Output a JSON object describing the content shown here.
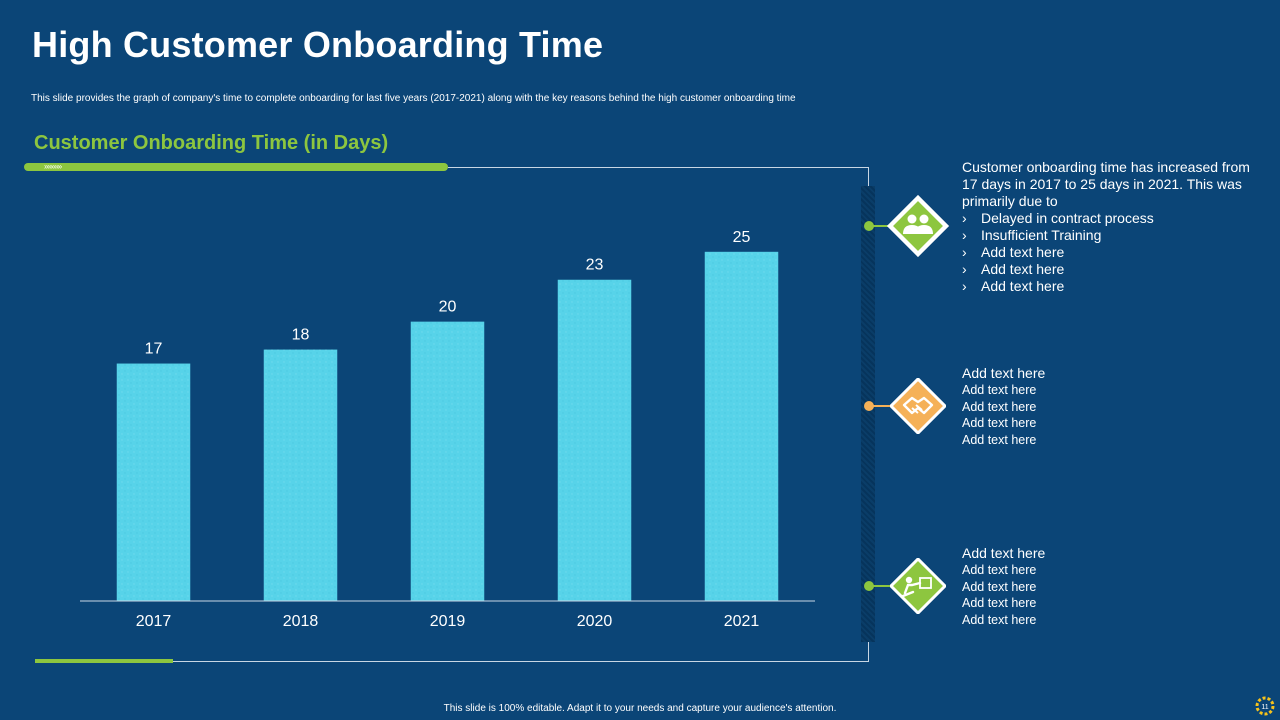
{
  "title": "High Customer Onboarding Time",
  "subtitle": "This slide provides the graph of company's time to complete onboarding for last five years (2017-2021) along with the key reasons behind the high customer onboarding time",
  "chart_heading": "Customer Onboarding Time (in Days)",
  "chevrons": "»»»»»",
  "chart_data": {
    "type": "bar",
    "categories": [
      "2017",
      "2018",
      "2019",
      "2020",
      "2021"
    ],
    "values": [
      17,
      18,
      20,
      23,
      25
    ],
    "title": "Customer Onboarding Time (in Days)",
    "xlabel": "",
    "ylabel": "",
    "ylim": [
      0,
      31
    ],
    "grid": false,
    "legend": "none",
    "bar_color": "#57d3e9"
  },
  "reasons": [
    {
      "icon": "people-icon",
      "color": "#8dc63f",
      "intro": "Customer onboarding time has increased from 17 days in 2017 to 25 days in 2021. This was primarily due to",
      "items": [
        "Delayed in contract process",
        "Insufficient Training",
        "Add text here",
        "Add text here",
        "Add text here"
      ],
      "marker": "›"
    },
    {
      "icon": "handshake-icon",
      "color": "#f5b158",
      "heading": "Add text here",
      "lines": [
        "Add text here",
        "Add text here",
        "Add text here",
        "Add text here"
      ]
    },
    {
      "icon": "training-icon",
      "color": "#8dc63f",
      "heading": "Add text here",
      "lines": [
        "Add text here",
        "Add text here",
        "Add text here",
        "Add text here"
      ]
    }
  ],
  "footer": "This slide is 100% editable. Adapt it to your needs and capture your audience's attention.",
  "page_number": "11"
}
